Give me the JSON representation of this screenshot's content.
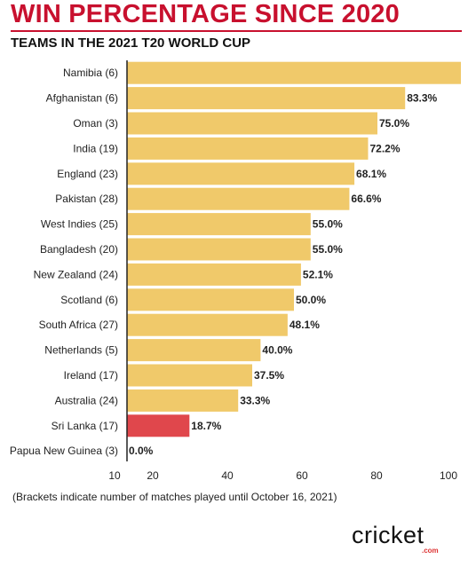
{
  "title": "WIN PERCENTAGE SINCE 2020",
  "subtitle": "TEAMS IN THE 2021 T20 WORLD CUP",
  "note": "(Brackets indicate number of matches played until October 16, 2021)",
  "logo": {
    "wordmark": "cricket",
    "suffix": ".com"
  },
  "colors": {
    "title": "#c8102e",
    "bar": "#f0c96a",
    "highlight": "#e0474c"
  },
  "chart_data": {
    "type": "bar",
    "orientation": "horizontal",
    "categories": [
      "Namibia (6)",
      "Afghanistan (6)",
      "Oman (3)",
      "India (19)",
      "England (23)",
      "Pakistan (28)",
      "West Indies (25)",
      "Bangladesh (20)",
      "New Zealand (24)",
      "Scotland (6)",
      "South Africa (27)",
      "Netherlands (5)",
      "Ireland (17)",
      "Australia (24)",
      "Sri Lanka (17)",
      "Papua New Guinea (3)"
    ],
    "values": [
      100,
      83.3,
      75.0,
      72.2,
      68.1,
      66.6,
      55.0,
      55.0,
      52.1,
      50.0,
      48.1,
      40.0,
      37.5,
      33.3,
      18.7,
      0.0
    ],
    "data_labels": [
      "",
      "83.3%",
      "75.0%",
      "72.2%",
      "68.1%",
      "66.6%",
      "55.0%",
      "55.0%",
      "52.1%",
      "50.0%",
      "48.1%",
      "40.0%",
      "37.5%",
      "33.3%",
      "18.7%",
      "0.0%"
    ],
    "highlight": "Sri Lanka (17)",
    "xticks": [
      10,
      20,
      40,
      60,
      80,
      100
    ],
    "xlim": [
      0,
      100
    ],
    "grid": false
  }
}
